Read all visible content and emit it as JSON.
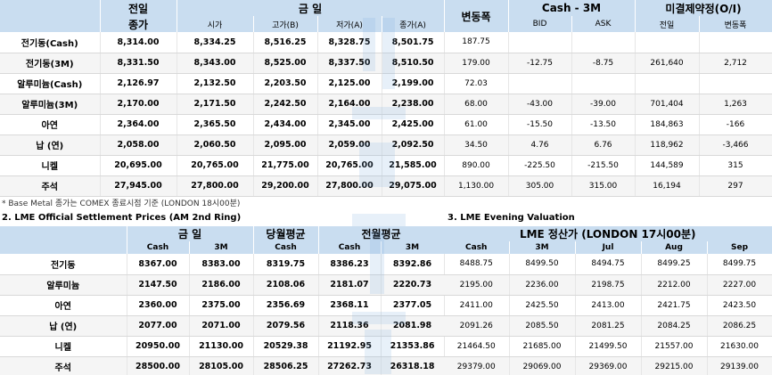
{
  "table1": {
    "headers": {
      "prev_day": "전일",
      "today": "금 일",
      "change": "변동폭",
      "cash3m": "Cash - 3M",
      "oi": "미결제약정(O/I)",
      "close_prev": "종가",
      "open": "시가",
      "high": "고가(B)",
      "low": "저가(A)",
      "close": "종가(A)",
      "bid": "BID",
      "ask": "ASK",
      "oi_prev": "전일",
      "oi_change": "변동폭"
    },
    "rows": [
      {
        "name": "전기동(Cash)",
        "prev": "8,314.00",
        "open": "8,334.25",
        "high": "8,516.25",
        "low": "8,328.75",
        "close": "8,501.75",
        "chg": "187.75",
        "bid": "",
        "ask": "",
        "oi": "",
        "oichg": ""
      },
      {
        "name": "전기동(3M)",
        "prev": "8,331.50",
        "open": "8,343.00",
        "high": "8,525.00",
        "low": "8,337.50",
        "close": "8,510.50",
        "chg": "179.00",
        "bid": "-12.75",
        "ask": "-8.75",
        "oi": "261,640",
        "oichg": "2,712"
      },
      {
        "name": "알루미늄(Cash)",
        "prev": "2,126.97",
        "open": "2,132.50",
        "high": "2,203.50",
        "low": "2,125.00",
        "close": "2,199.00",
        "chg": "72.03",
        "bid": "",
        "ask": "",
        "oi": "",
        "oichg": ""
      },
      {
        "name": "알루미늄(3M)",
        "prev": "2,170.00",
        "open": "2,171.50",
        "high": "2,242.50",
        "low": "2,164.00",
        "close": "2,238.00",
        "chg": "68.00",
        "bid": "-43.00",
        "ask": "-39.00",
        "oi": "701,404",
        "oichg": "1,263"
      },
      {
        "name": "아연",
        "prev": "2,364.00",
        "open": "2,365.50",
        "high": "2,434.00",
        "low": "2,345.00",
        "close": "2,425.00",
        "chg": "61.00",
        "bid": "-15.50",
        "ask": "-13.50",
        "oi": "184,863",
        "oichg": "-166"
      },
      {
        "name": "납 (연)",
        "prev": "2,058.00",
        "open": "2,060.50",
        "high": "2,095.00",
        "low": "2,059.00",
        "close": "2,092.50",
        "chg": "34.50",
        "bid": "4.76",
        "ask": "6.76",
        "oi": "118,962",
        "oichg": "-3,466"
      },
      {
        "name": "니켈",
        "prev": "20,695.00",
        "open": "20,765.00",
        "high": "21,775.00",
        "low": "20,765.00",
        "close": "21,585.00",
        "chg": "890.00",
        "bid": "-225.50",
        "ask": "-215.50",
        "oi": "144,589",
        "oichg": "315"
      },
      {
        "name": "주석",
        "prev": "27,945.00",
        "open": "27,800.00",
        "high": "29,200.00",
        "low": "27,800.00",
        "close": "29,075.00",
        "chg": "1,130.00",
        "bid": "305.00",
        "ask": "315.00",
        "oi": "16,194",
        "oichg": "297"
      }
    ]
  },
  "note": "* Base Metal 종가는 COMEX 종료시점 기준 (LONDON 18시00분)",
  "table2": {
    "title": "2. LME Official Settlement Prices (AM 2nd Ring)",
    "headers": {
      "today": "금 일",
      "month_avg": "당월평균",
      "prev_month_avg": "전월평균",
      "cash": "Cash",
      "m3": "3M"
    },
    "rows": [
      {
        "name": "전기동",
        "cash": "8367.00",
        "m3": "8383.00",
        "mavg": "8319.75",
        "pcash": "8386.23",
        "pm3": "8392.86"
      },
      {
        "name": "알루미늄",
        "cash": "2147.50",
        "m3": "2186.00",
        "mavg": "2108.06",
        "pcash": "2181.07",
        "pm3": "2220.73"
      },
      {
        "name": "아연",
        "cash": "2360.00",
        "m3": "2375.00",
        "mavg": "2356.69",
        "pcash": "2368.11",
        "pm3": "2377.05"
      },
      {
        "name": "납 (연)",
        "cash": "2077.00",
        "m3": "2071.00",
        "mavg": "2079.56",
        "pcash": "2118.36",
        "pm3": "2081.98"
      },
      {
        "name": "니켈",
        "cash": "20950.00",
        "m3": "21130.00",
        "mavg": "20529.38",
        "pcash": "21192.95",
        "pm3": "21353.86"
      },
      {
        "name": "주석",
        "cash": "28500.00",
        "m3": "28105.00",
        "mavg": "28506.25",
        "pcash": "27262.73",
        "pm3": "26318.18"
      }
    ]
  },
  "table3": {
    "title": "3. LME Evening Valuation",
    "headers": {
      "main": "LME 정산가 (LONDON 17시00분)",
      "cash": "Cash",
      "m3": "3M",
      "jul": "Jul",
      "aug": "Aug",
      "sep": "Sep"
    },
    "rows": [
      {
        "cash": "8488.75",
        "m3": "8499.50",
        "jul": "8494.75",
        "aug": "8499.25",
        "sep": "8499.75"
      },
      {
        "cash": "2195.00",
        "m3": "2236.00",
        "jul": "2198.75",
        "aug": "2212.00",
        "sep": "2227.00"
      },
      {
        "cash": "2411.00",
        "m3": "2425.50",
        "jul": "2413.00",
        "aug": "2421.75",
        "sep": "2423.50"
      },
      {
        "cash": "2091.26",
        "m3": "2085.50",
        "jul": "2081.25",
        "aug": "2084.25",
        "sep": "2086.25"
      },
      {
        "cash": "21464.50",
        "m3": "21685.00",
        "jul": "21499.50",
        "aug": "21557.00",
        "sep": "21630.00"
      },
      {
        "cash": "29379.00",
        "m3": "29069.00",
        "jul": "29369.00",
        "aug": "29215.00",
        "sep": "29139.00"
      }
    ]
  }
}
